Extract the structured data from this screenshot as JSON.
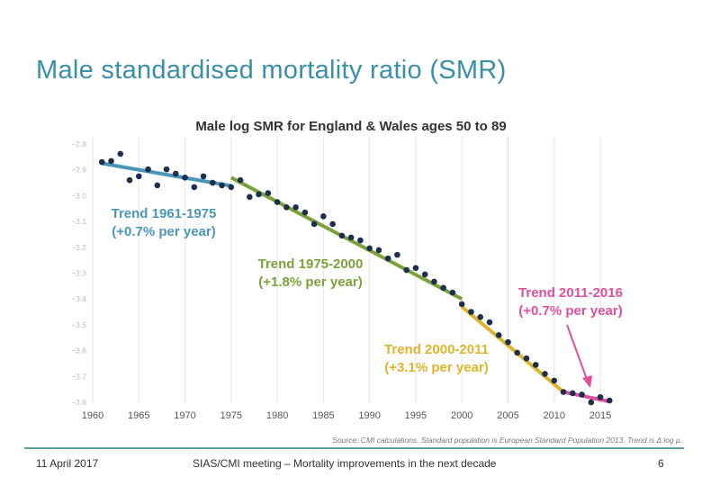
{
  "slide": {
    "title": "Male standardised mortality ratio (SMR)",
    "source": "Source: CMI calculations. Standard population is European Standard Population 2013. Trend is Δ log μ.",
    "footer_date": "11 April 2017",
    "footer_center": "SIAS/CMI meeting – Mortality improvements in the next decade",
    "page_number": "6",
    "accent_color": "#3a8fa8"
  },
  "chart_data": {
    "type": "scatter",
    "title": "Male log SMR for England & Wales ages 50 to 89",
    "xlim": [
      1960,
      2016
    ],
    "ylim": [
      -3.8,
      -2.8
    ],
    "grid": "vertical",
    "x_ticks": [
      "1960",
      "1965",
      "1970",
      "1975",
      "1980",
      "1985",
      "1990",
      "1995",
      "2000",
      "2005",
      "2010",
      "2015"
    ],
    "y_ticks": [
      "−2.8",
      "−2.9",
      "−3.0",
      "−3.1",
      "−3.2",
      "−3.3",
      "−3.4",
      "−3.5",
      "−3.6",
      "−3.7",
      "−3.8"
    ],
    "point_color": "#1b2f4e",
    "x": [
      1961,
      1962,
      1963,
      1964,
      1965,
      1966,
      1967,
      1968,
      1969,
      1970,
      1971,
      1972,
      1973,
      1974,
      1975,
      1976,
      1977,
      1978,
      1979,
      1980,
      1981,
      1982,
      1983,
      1984,
      1985,
      1986,
      1987,
      1988,
      1989,
      1990,
      1991,
      1992,
      1993,
      1994,
      1995,
      1996,
      1997,
      1998,
      1999,
      2000,
      2001,
      2002,
      2003,
      2004,
      2005,
      2006,
      2007,
      2008,
      2009,
      2010,
      2011,
      2012,
      2013,
      2014,
      2015,
      2016
    ],
    "y": [
      -2.87,
      -2.866,
      -2.838,
      -2.94,
      -2.925,
      -2.898,
      -2.96,
      -2.898,
      -2.915,
      -2.93,
      -2.967,
      -2.925,
      -2.95,
      -2.96,
      -2.967,
      -2.94,
      -3.005,
      -2.995,
      -2.99,
      -3.025,
      -3.045,
      -3.045,
      -3.065,
      -3.11,
      -3.08,
      -3.11,
      -3.155,
      -3.162,
      -3.173,
      -3.204,
      -3.211,
      -3.243,
      -3.229,
      -3.288,
      -3.28,
      -3.305,
      -3.333,
      -3.357,
      -3.375,
      -3.42,
      -3.45,
      -3.47,
      -3.49,
      -3.54,
      -3.567,
      -3.608,
      -3.63,
      -3.655,
      -3.69,
      -3.716,
      -3.76,
      -3.765,
      -3.77,
      -3.8,
      -3.78,
      -3.793
    ],
    "trends": [
      {
        "label": "Trend 1961-1975",
        "rate": "(+0.7% per year)",
        "color": "#4a96b8",
        "x": [
          1961,
          1975
        ],
        "y": [
          -2.875,
          -2.962
        ]
      },
      {
        "label": "Trend 1975-2000",
        "rate": "(+1.8% per year)",
        "color": "#7ba23a",
        "x": [
          1975,
          2000
        ],
        "y": [
          -2.93,
          -3.4
        ]
      },
      {
        "label": "Trend 2000-2011",
        "rate": "(+3.1% per year)",
        "color": "#e0b42a",
        "x": [
          2000,
          2011
        ],
        "y": [
          -3.43,
          -3.76
        ]
      },
      {
        "label": "Trend 2011-2016",
        "rate": "(+0.7% per year)",
        "color": "#e0509a",
        "x": [
          2011,
          2016
        ],
        "y": [
          -3.76,
          -3.797
        ]
      }
    ]
  }
}
